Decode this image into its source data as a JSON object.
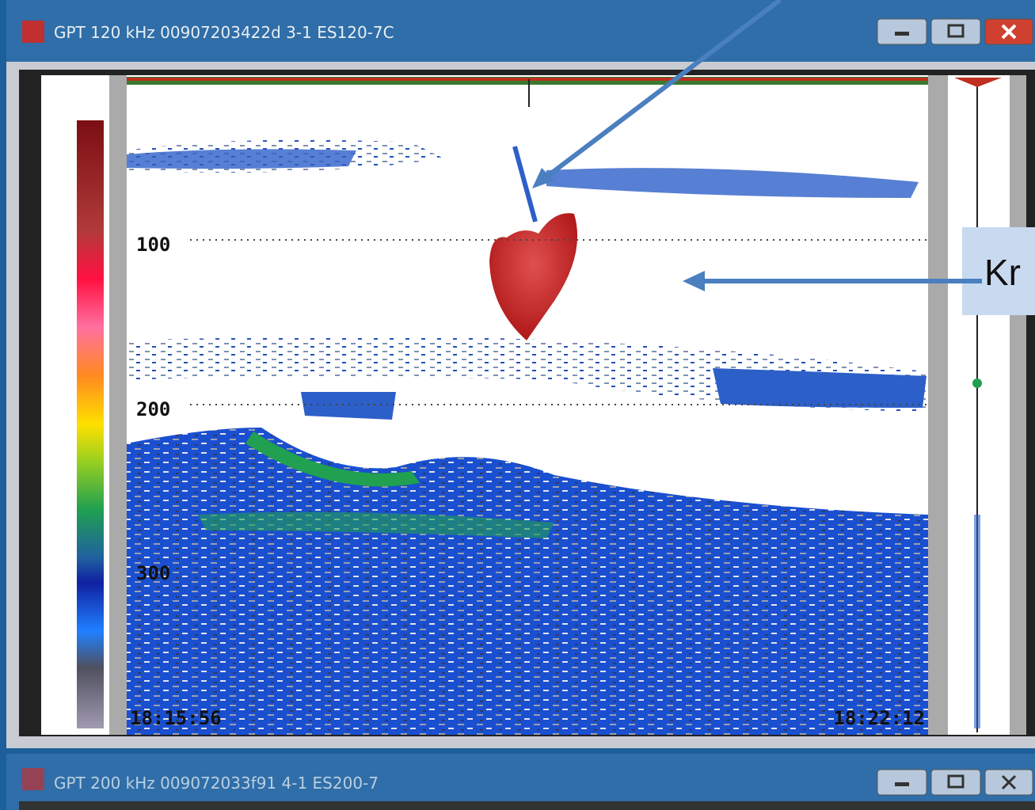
{
  "windows": [
    {
      "title": "GPT 120 kHz 00907203422d 3-1 ES120-7C",
      "depth_labels": [
        "100",
        "200",
        "300"
      ],
      "start_time": "18:15:56",
      "end_time": "18:22:12"
    },
    {
      "title": "GPT 200 kHz 009072033f91 4-1 ES200-7"
    }
  ],
  "annotation": {
    "label": "Kr"
  }
}
